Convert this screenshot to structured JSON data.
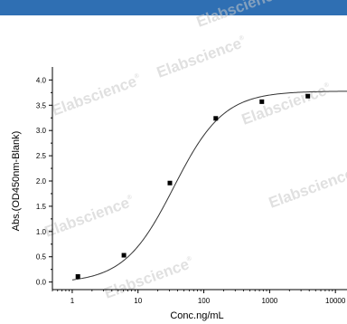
{
  "colors": {
    "top_bar": "#2f6fb3",
    "curve": "#333333",
    "points": "#000000",
    "axis": "#000000",
    "watermark": "#c8c8c8"
  },
  "watermark": {
    "text": "Elabscience",
    "mark": "®"
  },
  "chart_data": {
    "type": "scatter",
    "xlabel": "Conc.ng/mL",
    "ylabel": "Abs.(OD450nm-Blank)",
    "x_scale": "log",
    "xlim": [
      0.5,
      15000
    ],
    "ylim": [
      -0.15,
      4.15
    ],
    "x_ticks": [
      1,
      10,
      100,
      1000,
      10000
    ],
    "x_tick_labels": [
      "1",
      "10",
      "100",
      "1000",
      "10000"
    ],
    "y_ticks": [
      0.0,
      0.5,
      1.0,
      1.5,
      2.0,
      2.5,
      3.0,
      3.5,
      4.0
    ],
    "y_tick_labels": [
      "0.0",
      "0.5",
      "1.0",
      "1.5",
      "2.0",
      "2.5",
      "3.0",
      "3.5",
      "4.0"
    ],
    "grid": false,
    "series": [
      {
        "x": [
          1.22,
          6.1,
          30.5,
          152,
          762,
          3810
        ],
        "y": [
          0.11,
          0.53,
          1.96,
          3.24,
          3.57,
          3.68
        ]
      }
    ],
    "fit_curve": {
      "model": "4PL",
      "bottom": -0.02,
      "top": 3.78,
      "ec50": 35,
      "hill": 1.15
    }
  }
}
